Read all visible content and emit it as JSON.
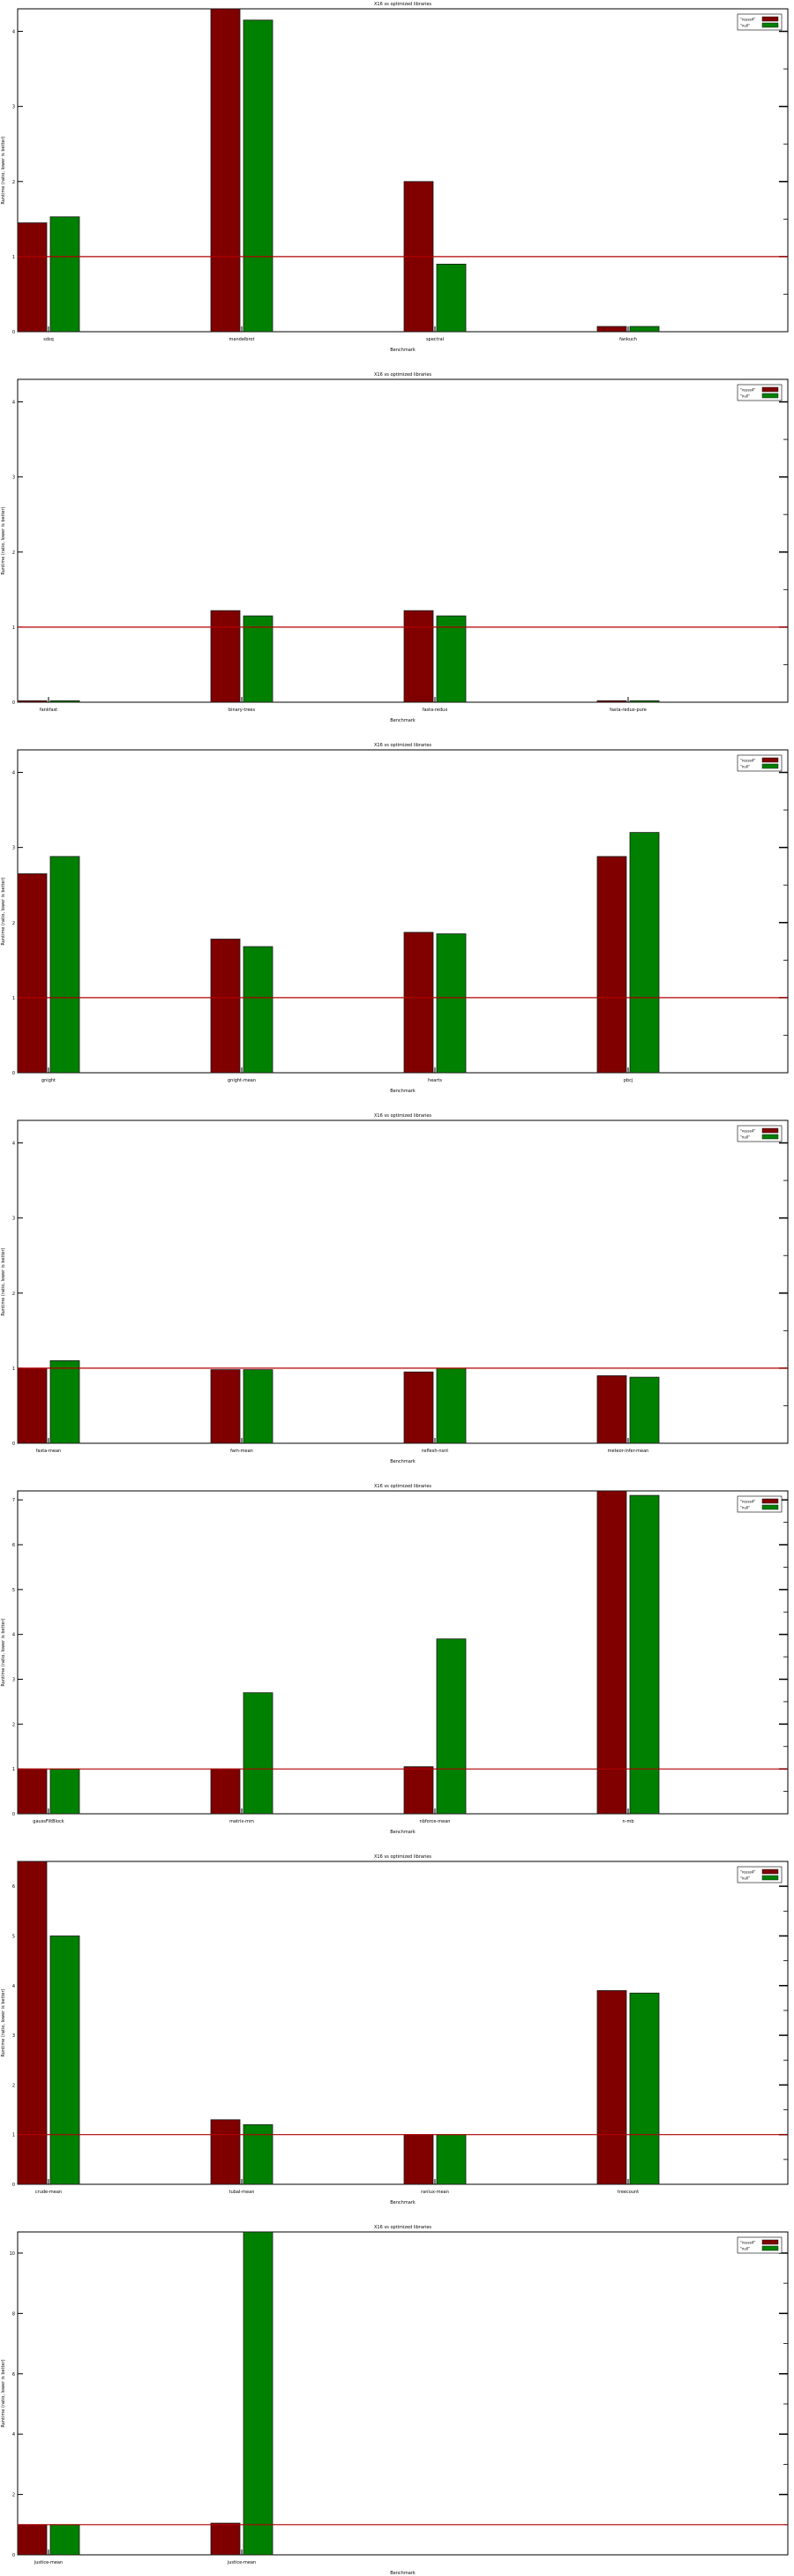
{
  "colors": {
    "series1": "#800000",
    "series2": "#008000",
    "baseline": "#b00000",
    "bar_edge": "#1a1a1a"
  },
  "chart_data": [
    {
      "type": "bar",
      "title": "X16 vs optimized libraries",
      "xlabel": "Benchmark",
      "ylabel": "Runtime (ratio, lower is better)",
      "categories": [
        "sdsq",
        "mandelbrot",
        "spectral",
        "fankuch"
      ],
      "series": [
        {
          "name": "\"reuse4\"",
          "values": [
            1.45,
            4.3,
            2.0,
            0.07
          ]
        },
        {
          "name": "\"null\"",
          "values": [
            1.53,
            4.15,
            0.9,
            0.07
          ]
        }
      ],
      "ylim": [
        0,
        4.3
      ],
      "baseline": 1,
      "legend": "top-right",
      "grid": false
    },
    {
      "type": "bar",
      "title": "X16 vs optimized libraries",
      "xlabel": "Benchmark",
      "ylabel": "Runtime (ratio, lower is better)",
      "categories": [
        "fankfast",
        "binary-trees",
        "fasta-redux",
        "fasta-redux-pure"
      ],
      "series": [
        {
          "name": "\"reuse4\"",
          "values": [
            0.02,
            1.22,
            1.22,
            0.02
          ]
        },
        {
          "name": "\"null\"",
          "values": [
            0.02,
            1.15,
            1.15,
            0.02
          ]
        }
      ],
      "ylim": [
        0,
        4.3
      ],
      "baseline": 1,
      "legend": "top-right",
      "grid": false
    },
    {
      "type": "bar",
      "title": "X16 vs optimized libraries",
      "xlabel": "Benchmark",
      "ylabel": "Runtime (ratio, lower is better)",
      "categories": [
        "gnight",
        "gnight-mean",
        "hearts",
        "pbcj"
      ],
      "series": [
        {
          "name": "\"reuse4\"",
          "values": [
            2.65,
            1.78,
            1.87,
            2.88
          ]
        },
        {
          "name": "\"null\"",
          "values": [
            2.88,
            1.68,
            1.85,
            3.2
          ]
        }
      ],
      "ylim": [
        0,
        4.3
      ],
      "baseline": 1,
      "legend": "top-right",
      "grid": false
    },
    {
      "type": "bar",
      "title": "X16 vs optimized libraries",
      "xlabel": "Benchmark",
      "ylabel": "Runtime (ratio, lower is better)",
      "categories": [
        "fasta-mean",
        "fam-mean",
        "nsflesh-nsnt",
        "meteor-infer-mean"
      ],
      "series": [
        {
          "name": "\"reuse4\"",
          "values": [
            1.0,
            0.98,
            0.95,
            0.9
          ]
        },
        {
          "name": "\"null\"",
          "values": [
            1.1,
            0.98,
            1.0,
            0.88
          ]
        }
      ],
      "ylim": [
        0,
        4.3
      ],
      "baseline": 1,
      "legend": "top-right",
      "grid": false
    },
    {
      "type": "bar",
      "title": "X16 vs optimized libraries",
      "xlabel": "Benchmark",
      "ylabel": "Runtime (ratio, lower is better)",
      "categories": [
        "gaussFiltBlock",
        "matrix-mm",
        "nbforce-mean",
        "n-mb"
      ],
      "series": [
        {
          "name": "\"reuse4\"",
          "values": [
            1.0,
            1.0,
            1.05,
            7.2
          ]
        },
        {
          "name": "\"null\"",
          "values": [
            1.0,
            2.7,
            3.9,
            7.1
          ]
        }
      ],
      "ylim": [
        0,
        7.2
      ],
      "baseline": 1,
      "legend": "top-right",
      "grid": false
    },
    {
      "type": "bar",
      "title": "X16 vs optimized libraries",
      "xlabel": "Benchmark",
      "ylabel": "Runtime (ratio, lower is better)",
      "categories": [
        "crude-mean",
        "tubal-mean",
        "ranlux-mean",
        "treecount"
      ],
      "series": [
        {
          "name": "\"reuse4\"",
          "values": [
            6.5,
            1.3,
            1.0,
            3.9
          ]
        },
        {
          "name": "\"null\"",
          "values": [
            5.0,
            1.2,
            1.0,
            3.85
          ]
        }
      ],
      "ylim": [
        0,
        6.5
      ],
      "baseline": 1,
      "legend": "top-right",
      "grid": false
    },
    {
      "type": "bar",
      "title": "X16 vs optimized libraries",
      "xlabel": "Benchmark",
      "ylabel": "Runtime (ratio, lower is better)",
      "categories": [
        "justice-mean",
        "justice-mean"
      ],
      "series": [
        {
          "name": "\"reuse4\"",
          "values": [
            1.0,
            1.05
          ]
        },
        {
          "name": "\"null\"",
          "values": [
            1.0,
            10.7
          ]
        }
      ],
      "ylim": [
        0,
        10.7
      ],
      "baseline": 1,
      "legend": "top-right",
      "grid": false
    }
  ]
}
